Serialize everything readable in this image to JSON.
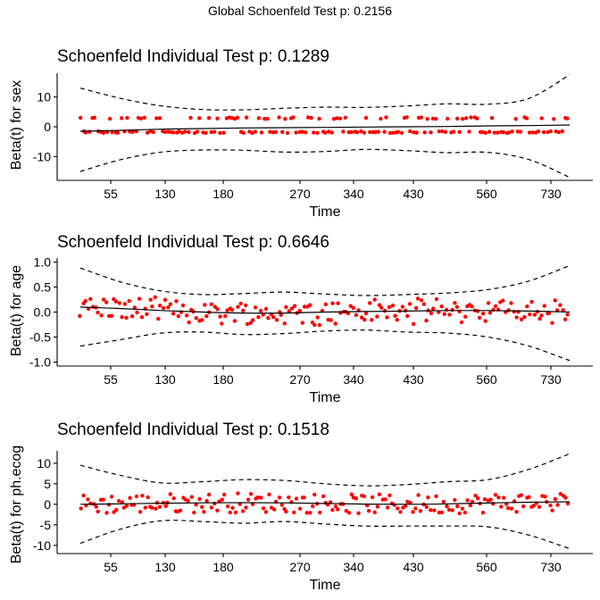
{
  "figure_title": "Global Schoenfeld Test p: 0.2156",
  "chart_data": [
    {
      "type": "scatter",
      "title": "Schoenfeld Individual Test p: 0.1289",
      "xlabel": "Time",
      "ylabel": "Beta(t) for sex",
      "ylim": [
        -18,
        18
      ],
      "yticks": [
        10,
        0,
        -10
      ],
      "ytick_labels": [
        "10",
        "0",
        "-10"
      ],
      "xticks": [
        "55",
        "130",
        "180",
        "270",
        "340",
        "430",
        "560",
        "730"
      ],
      "residual_pattern": {
        "upper_values": [
          3,
          2.8,
          2.6,
          2.8
        ],
        "lower_values": [
          -2,
          -1.8,
          -2.2,
          -1.9
        ]
      },
      "fit": [
        -1.5,
        -1.2,
        -0.8,
        -0.6,
        -0.4,
        -0.3,
        -0.2,
        -0.1,
        0.0,
        0.1,
        0.3,
        0.4,
        0.6
      ],
      "upper_band": [
        13,
        9.5,
        7.0,
        5.8,
        5.7,
        6.2,
        6.6,
        6.5,
        7.0,
        7.7,
        7.6,
        9.5,
        17.5
      ],
      "lower_band": [
        -15,
        -11,
        -8.5,
        -7.8,
        -7.9,
        -8.5,
        -8.3,
        -7.6,
        -8.0,
        -8.7,
        -8.6,
        -11,
        -17
      ]
    },
    {
      "type": "scatter",
      "title": "Schoenfeld Individual Test p: 0.6646",
      "xlabel": "Time",
      "ylabel": "Beta(t) for age",
      "ylim": [
        -1.08,
        1.08
      ],
      "yticks": [
        1.0,
        0.5,
        0.0,
        -0.5,
        -1.0
      ],
      "ytick_labels": [
        "1.0",
        "0.5",
        "0.0",
        "-0.5",
        "-1.0"
      ],
      "xticks": [
        "55",
        "130",
        "180",
        "270",
        "340",
        "430",
        "560",
        "730"
      ],
      "fit": [
        0.1,
        0.07,
        0.03,
        0.0,
        -0.02,
        -0.02,
        0.0,
        0.01,
        0.02,
        0.03,
        0.03,
        0.02,
        0.0
      ],
      "upper_band": [
        0.88,
        0.6,
        0.42,
        0.35,
        0.37,
        0.4,
        0.36,
        0.33,
        0.35,
        0.38,
        0.45,
        0.62,
        0.93
      ],
      "lower_band": [
        -0.68,
        -0.55,
        -0.42,
        -0.4,
        -0.45,
        -0.43,
        -0.38,
        -0.36,
        -0.4,
        -0.42,
        -0.5,
        -0.68,
        -0.97
      ]
    },
    {
      "type": "scatter",
      "title": "Schoenfeld Individual Test p: 0.1518",
      "xlabel": "Time",
      "ylabel": "Beta(t) for ph.ecog",
      "ylim": [
        -12,
        13
      ],
      "yticks": [
        10,
        5,
        0,
        -5,
        -10
      ],
      "ytick_labels": [
        "10",
        "5",
        "0",
        "-5",
        "-10"
      ],
      "xticks": [
        "55",
        "130",
        "180",
        "270",
        "340",
        "430",
        "560",
        "730"
      ],
      "fit": [
        0.0,
        0.1,
        0.25,
        0.35,
        0.4,
        0.35,
        0.2,
        0.05,
        0.0,
        0.1,
        0.3,
        0.5,
        0.6
      ],
      "upper_band": [
        9.5,
        7.0,
        5.2,
        5.5,
        6.0,
        5.8,
        5.0,
        4.5,
        4.8,
        5.5,
        6.0,
        8.5,
        12.3
      ],
      "lower_band": [
        -9.5,
        -6.0,
        -4.0,
        -4.2,
        -4.6,
        -4.2,
        -4.8,
        -5.3,
        -5.3,
        -5.3,
        -5.5,
        -7.5,
        -10.8
      ]
    }
  ]
}
